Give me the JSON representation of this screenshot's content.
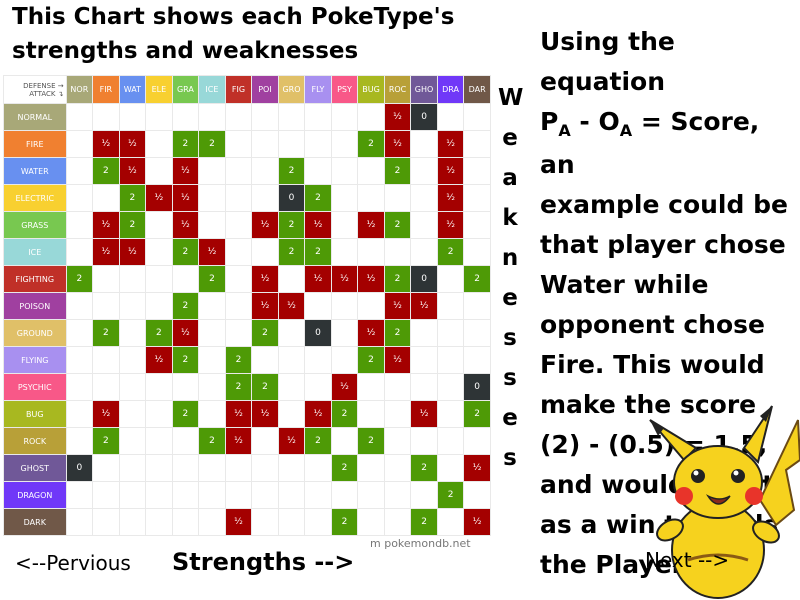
{
  "title": "This Chart shows each PokeType's strengths and weaknesses",
  "corner": {
    "line1": "DEFENSE →",
    "line2": "ATTACK ↴"
  },
  "columns": [
    {
      "label": "NOR",
      "color": "#a8a878"
    },
    {
      "label": "FIR",
      "color": "#f08030"
    },
    {
      "label": "WAT",
      "color": "#6890f0"
    },
    {
      "label": "ELE",
      "color": "#f8d030"
    },
    {
      "label": "GRA",
      "color": "#78c850"
    },
    {
      "label": "ICE",
      "color": "#98d8d8"
    },
    {
      "label": "FIG",
      "color": "#c03028"
    },
    {
      "label": "POI",
      "color": "#a040a0"
    },
    {
      "label": "GRO",
      "color": "#e0c068"
    },
    {
      "label": "FLY",
      "color": "#a890f0"
    },
    {
      "label": "PSY",
      "color": "#f85888"
    },
    {
      "label": "BUG",
      "color": "#a8b820"
    },
    {
      "label": "ROC",
      "color": "#b8a038"
    },
    {
      "label": "GHO",
      "color": "#705898"
    },
    {
      "label": "DRA",
      "color": "#7038f8"
    },
    {
      "label": "DAR",
      "color": "#705848"
    }
  ],
  "rows": [
    {
      "label": "NORMAL",
      "color": "#a8a878",
      "cells": [
        "",
        "",
        "",
        "",
        "",
        "",
        "",
        "",
        "",
        "",
        "",
        "",
        "½",
        "0",
        "",
        ""
      ]
    },
    {
      "label": "FIRE",
      "color": "#f08030",
      "cells": [
        "",
        "½",
        "½",
        "",
        "2",
        "2",
        "",
        "",
        "",
        "",
        "",
        "2",
        "½",
        "",
        "½",
        ""
      ]
    },
    {
      "label": "WATER",
      "color": "#6890f0",
      "cells": [
        "",
        "2",
        "½",
        "",
        "½",
        "",
        "",
        "",
        "2",
        "",
        "",
        "",
        "2",
        "",
        "½",
        ""
      ]
    },
    {
      "label": "ELECTRIC",
      "color": "#f8d030",
      "cells": [
        "",
        "",
        "2",
        "½",
        "½",
        "",
        "",
        "",
        "0",
        "2",
        "",
        "",
        "",
        "",
        "½",
        ""
      ]
    },
    {
      "label": "GRASS",
      "color": "#78c850",
      "cells": [
        "",
        "½",
        "2",
        "",
        "½",
        "",
        "",
        "½",
        "2",
        "½",
        "",
        "½",
        "2",
        "",
        "½",
        ""
      ]
    },
    {
      "label": "ICE",
      "color": "#98d8d8",
      "cells": [
        "",
        "½",
        "½",
        "",
        "2",
        "½",
        "",
        "",
        "2",
        "2",
        "",
        "",
        "",
        "",
        "2",
        ""
      ]
    },
    {
      "label": "FIGHTING",
      "color": "#c03028",
      "cells": [
        "2",
        "",
        "",
        "",
        "",
        "2",
        "",
        "½",
        "",
        "½",
        "½",
        "½",
        "2",
        "0",
        "",
        "2"
      ]
    },
    {
      "label": "POISON",
      "color": "#a040a0",
      "cells": [
        "",
        "",
        "",
        "",
        "2",
        "",
        "",
        "½",
        "½",
        "",
        "",
        "",
        "½",
        "½",
        "",
        ""
      ]
    },
    {
      "label": "GROUND",
      "color": "#e0c068",
      "cells": [
        "",
        "2",
        "",
        "2",
        "½",
        "",
        "",
        "2",
        "",
        "0",
        "",
        "½",
        "2",
        "",
        "",
        ""
      ]
    },
    {
      "label": "FLYING",
      "color": "#a890f0",
      "cells": [
        "",
        "",
        "",
        "½",
        "2",
        "",
        "2",
        "",
        "",
        "",
        "",
        "2",
        "½",
        "",
        "",
        ""
      ]
    },
    {
      "label": "PSYCHIC",
      "color": "#f85888",
      "cells": [
        "",
        "",
        "",
        "",
        "",
        "",
        "2",
        "2",
        "",
        "",
        "½",
        "",
        "",
        "",
        "",
        "0"
      ]
    },
    {
      "label": "BUG",
      "color": "#a8b820",
      "cells": [
        "",
        "½",
        "",
        "",
        "2",
        "",
        "½",
        "½",
        "",
        "½",
        "2",
        "",
        "",
        "½",
        "",
        "2"
      ]
    },
    {
      "label": "ROCK",
      "color": "#b8a038",
      "cells": [
        "",
        "2",
        "",
        "",
        "",
        "2",
        "½",
        "",
        "½",
        "2",
        "",
        "2",
        "",
        "",
        "",
        ""
      ]
    },
    {
      "label": "GHOST",
      "color": "#705898",
      "cells": [
        "0",
        "",
        "",
        "",
        "",
        "",
        "",
        "",
        "",
        "",
        "2",
        "",
        "",
        "2",
        "",
        "½"
      ]
    },
    {
      "label": "DRAGON",
      "color": "#7038f8",
      "cells": [
        "",
        "",
        "",
        "",
        "",
        "",
        "",
        "",
        "",
        "",
        "",
        "",
        "",
        "",
        "2",
        ""
      ]
    },
    {
      "label": "DARK",
      "color": "#705848",
      "cells": [
        "",
        "",
        "",
        "",
        "",
        "",
        "½",
        "",
        "",
        "",
        "2",
        "",
        "",
        "2",
        "",
        "½"
      ]
    }
  ],
  "weaknesses_letters": [
    "W",
    "e",
    "a",
    "k",
    "n",
    "e",
    "s",
    "s",
    "e",
    "s"
  ],
  "explanation": {
    "line1": "Using the equation",
    "p": "P",
    "sub_a": "A",
    "mid": " - O",
    "sub_b": "A",
    "end": " = Score, an",
    "rest": "example could be that player chose Water while opponent chose Fire. This would make the score (2) - (0.5) = 1.5, and would count as a win towards the Player."
  },
  "nav": {
    "previous": "<--Pervious",
    "strengths": "Strengths -->",
    "next": "Next -->"
  },
  "credit": "pokemondb.net",
  "colors": {
    "half": "#a40000",
    "two": "#4e9a06",
    "zero": "#2e3436"
  }
}
